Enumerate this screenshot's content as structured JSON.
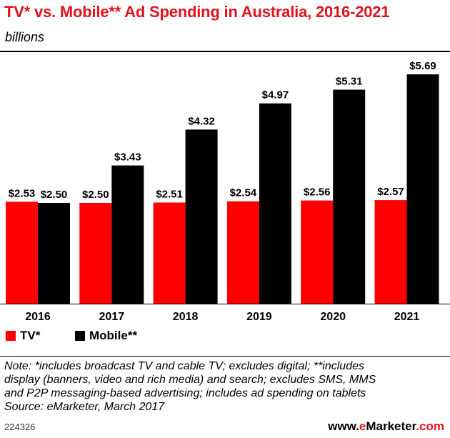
{
  "header": {
    "title": "TV* vs. Mobile** Ad Spending in Australia, 2016-2021",
    "subtitle": "billions"
  },
  "chart_data": {
    "type": "bar",
    "title": "TV* vs. Mobile** Ad Spending in Australia, 2016-2021",
    "subtitle": "billions",
    "categories": [
      "2016",
      "2017",
      "2018",
      "2019",
      "2020",
      "2021"
    ],
    "series": [
      {
        "name": "TV*",
        "color": "#ff0000",
        "values": [
          2.53,
          2.5,
          2.51,
          2.54,
          2.56,
          2.57
        ],
        "labels": [
          "$2.53",
          "$2.50",
          "$2.51",
          "$2.54",
          "$2.56",
          "$2.57"
        ]
      },
      {
        "name": "Mobile**",
        "color": "#000000",
        "values": [
          2.5,
          3.43,
          4.32,
          4.97,
          5.31,
          5.69
        ],
        "labels": [
          "$2.50",
          "$3.43",
          "$4.32",
          "$4.97",
          "$5.31",
          "$5.69"
        ]
      }
    ],
    "ylim": [
      0,
      6
    ],
    "grid": false,
    "legend_position": "bottom-left"
  },
  "legend": {
    "items": [
      "TV*",
      "Mobile**"
    ]
  },
  "note": {
    "lines": [
      "Note: *includes broadcast TV and cable TV; excludes digital; **includes",
      "display (banners, video and rich media) and search; excludes SMS, MMS",
      "and P2P messaging-based advertising; includes ad spending on tablets",
      "Source: eMarketer, March 2017"
    ]
  },
  "footer": {
    "chart_id": "224326",
    "brand_prefix": "www.",
    "brand_e": "e",
    "brand_rest": "Marketer",
    "brand_suffix": ".com"
  }
}
